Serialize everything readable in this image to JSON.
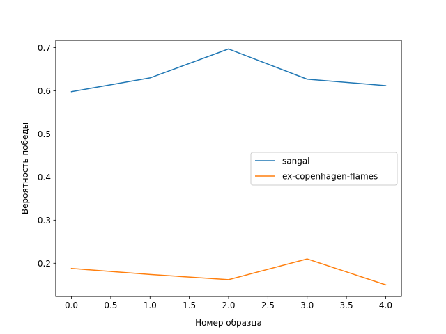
{
  "chart_data": {
    "type": "line",
    "xlabel": "Номер образца",
    "ylabel": "Вероятность победы",
    "xlim": [
      -0.2,
      4.2
    ],
    "ylim": [
      0.123,
      0.717
    ],
    "x": [
      0,
      1,
      2,
      3,
      4
    ],
    "xticks": [
      0.0,
      0.5,
      1.0,
      1.5,
      2.0,
      2.5,
      3.0,
      3.5,
      4.0
    ],
    "xtick_labels": [
      "0.0",
      "0.5",
      "1.0",
      "1.5",
      "2.0",
      "2.5",
      "3.0",
      "3.5",
      "4.0"
    ],
    "yticks": [
      0.2,
      0.3,
      0.4,
      0.5,
      0.6,
      0.7
    ],
    "ytick_labels": [
      "0.2",
      "0.3",
      "0.4",
      "0.5",
      "0.6",
      "0.7"
    ],
    "grid": false,
    "legend_position": "center-right",
    "series": [
      {
        "name": "sangal",
        "color": "#1f77b4",
        "values": [
          0.598,
          0.63,
          0.697,
          0.627,
          0.612
        ]
      },
      {
        "name": "ex-copenhagen-flames",
        "color": "#ff7f0e",
        "values": [
          0.188,
          0.174,
          0.162,
          0.21,
          0.15
        ]
      }
    ]
  }
}
